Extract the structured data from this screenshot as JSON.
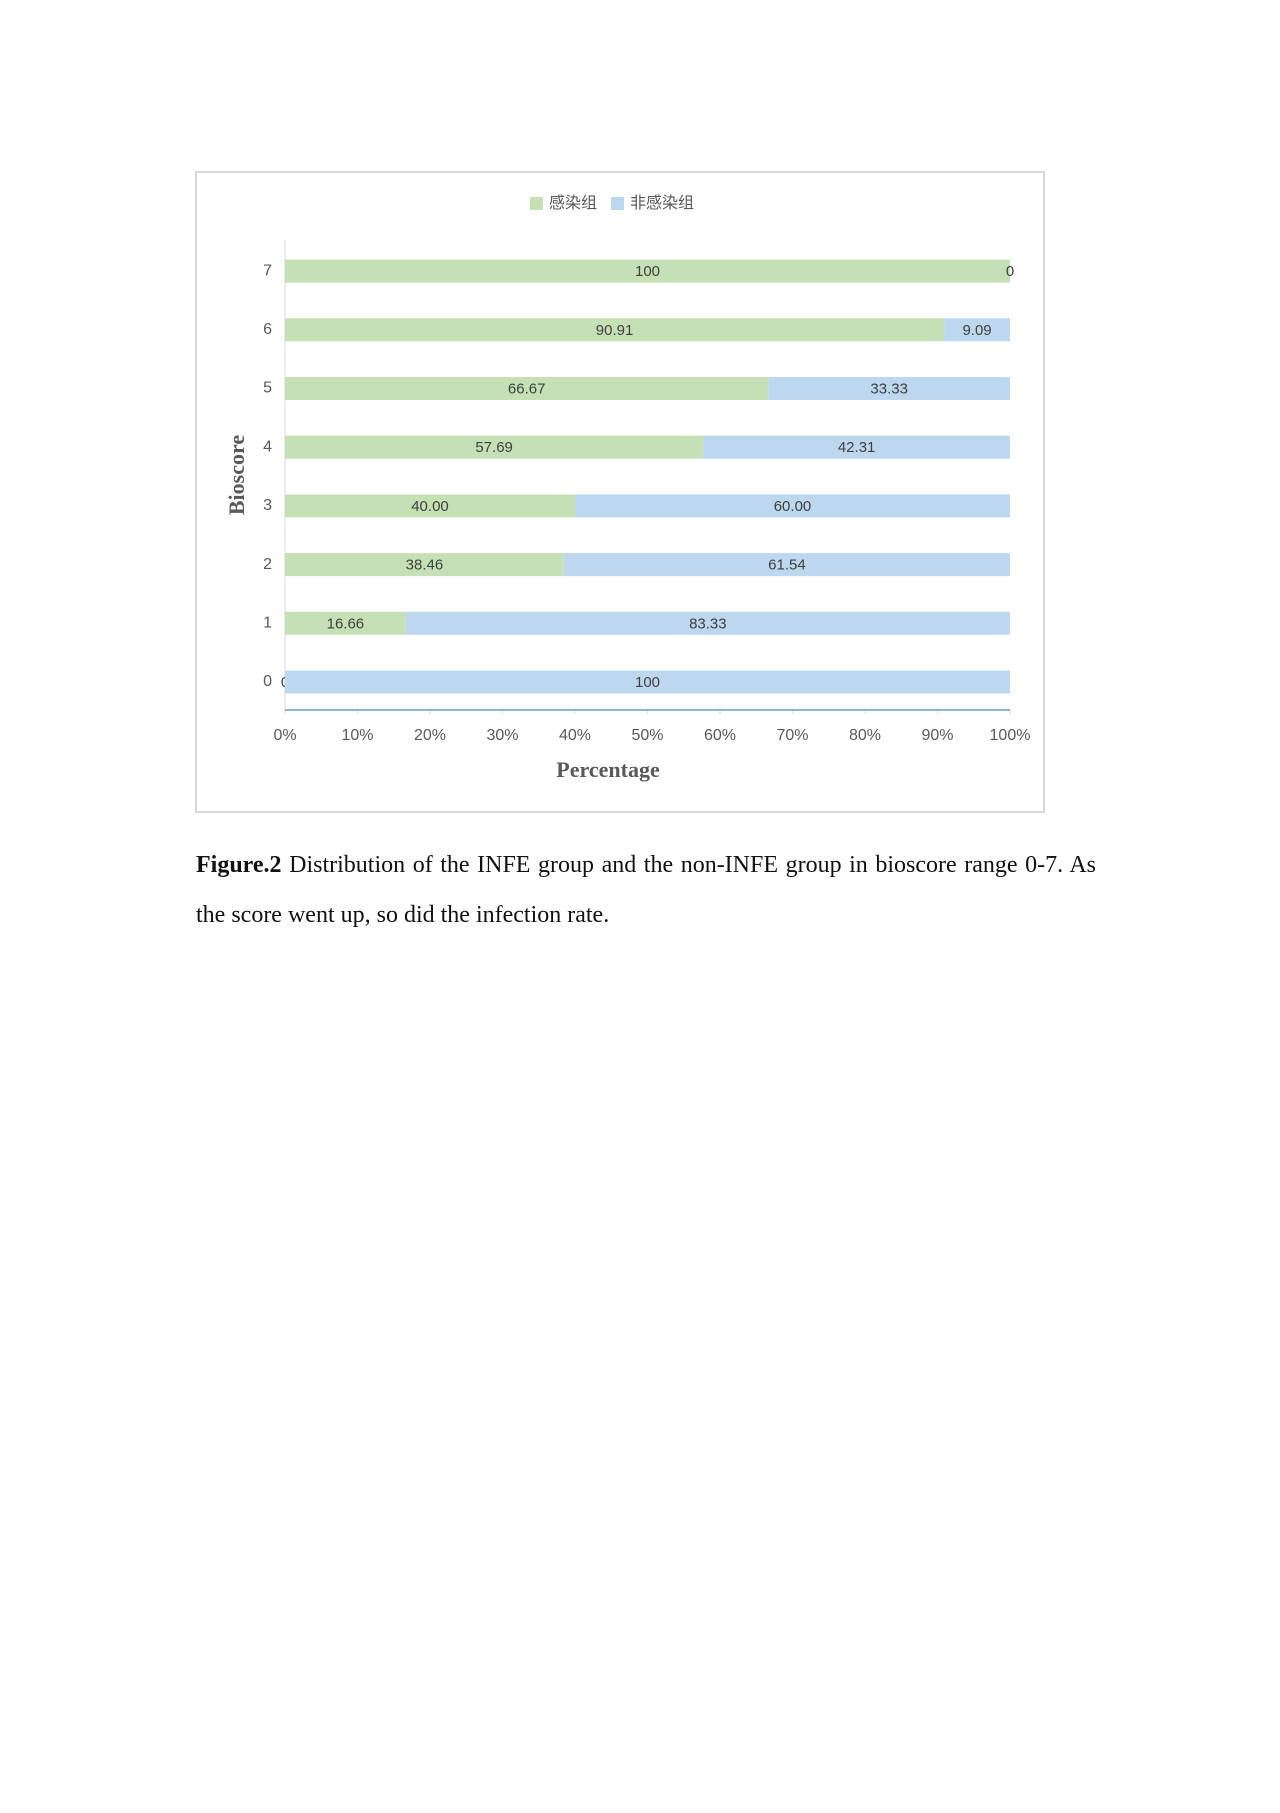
{
  "chart_data": {
    "type": "bar",
    "orientation": "horizontal",
    "stacked": true,
    "x_label": "Percentage",
    "y_label": "Bioscore",
    "categories": [
      "0",
      "1",
      "2",
      "3",
      "4",
      "5",
      "6",
      "7"
    ],
    "series": [
      {
        "name": "感染组",
        "color": "#c5e0b4",
        "values": [
          0,
          16.66,
          38.46,
          40.0,
          57.69,
          66.67,
          90.91,
          100
        ],
        "value_labels": [
          "0",
          "16.66",
          "38.46",
          "40.00",
          "57.69",
          "66.67",
          "90.91",
          "100"
        ]
      },
      {
        "name": "非感染组",
        "color": "#bdd7ee",
        "values": [
          100,
          83.33,
          61.54,
          60.0,
          42.31,
          33.33,
          9.09,
          0
        ],
        "value_labels": [
          "100",
          "83.33",
          "61.54",
          "60.00",
          "42.31",
          "33.33",
          "9.09",
          "0"
        ]
      }
    ],
    "xlim": [
      0,
      100
    ],
    "xticks": [
      {
        "value": 0,
        "label": "0%"
      },
      {
        "value": 10,
        "label": "10%"
      },
      {
        "value": 20,
        "label": "20%"
      },
      {
        "value": 30,
        "label": "30%"
      },
      {
        "value": 40,
        "label": "40%"
      },
      {
        "value": 50,
        "label": "50%"
      },
      {
        "value": 60,
        "label": "60%"
      },
      {
        "value": 70,
        "label": "70%"
      },
      {
        "value": 80,
        "label": "80%"
      },
      {
        "value": 90,
        "label": "90%"
      },
      {
        "value": 100,
        "label": "100%"
      }
    ],
    "legend": "top"
  },
  "caption": {
    "label": "Figure.2",
    "text": "Distribution of the INFE group and the non-INFE group in bioscore range 0-7. As the score went up, so did the infection rate."
  }
}
